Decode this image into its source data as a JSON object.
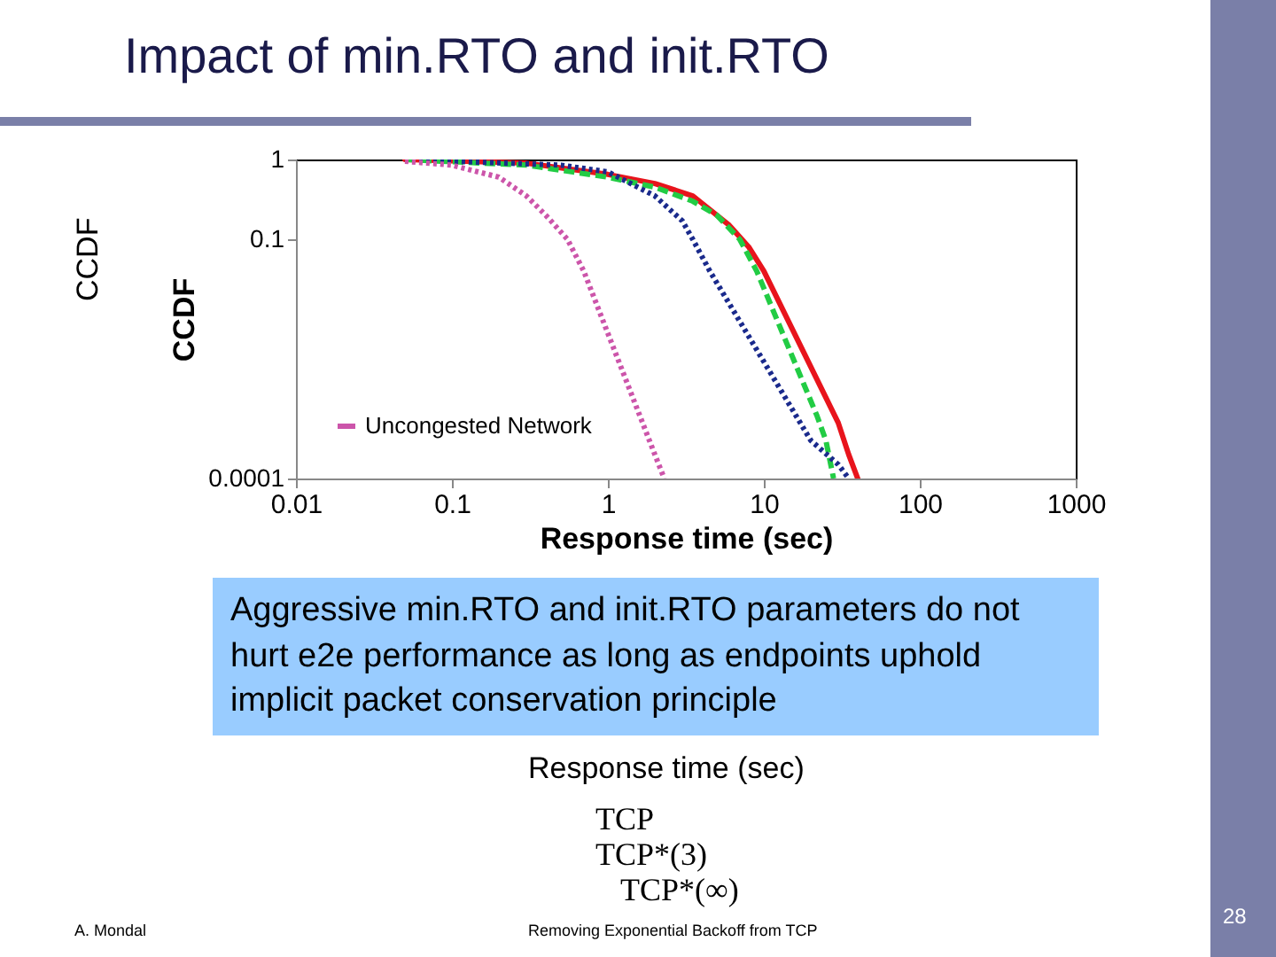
{
  "chart_data": {
    "type": "line",
    "title": "Impact of min.RTO and init.RTO",
    "xlabel": "Response time (sec)",
    "ylabel": "CCDF",
    "log": "xy",
    "xlim": [
      0.01,
      1000
    ],
    "ylim": [
      0.0001,
      1
    ],
    "xticks": [
      0.01,
      0.1,
      1,
      10,
      100,
      1000
    ],
    "yticks": [
      0.0001,
      0.1,
      1
    ],
    "legend": "bottom left",
    "series": [
      {
        "color": "#e8141c",
        "line_style": "solid",
        "x": [
          0.05,
          0.3,
          1,
          2,
          3.5,
          6,
          8,
          10,
          30,
          35,
          40
        ],
        "values": [
          1,
          0.9,
          0.65,
          0.5,
          0.35,
          0.15,
          0.08,
          0.04,
          0.0005,
          0.0002,
          0.0001
        ]
      },
      {
        "color": "#22cc44",
        "line_style": "dashed",
        "x": [
          0.05,
          0.3,
          1,
          2,
          3.5,
          5,
          7,
          9,
          22,
          25,
          28
        ],
        "values": [
          1,
          0.85,
          0.6,
          0.45,
          0.3,
          0.2,
          0.1,
          0.04,
          0.0006,
          0.0003,
          0.0001
        ]
      },
      {
        "color": "#1a2a8c",
        "line_style": "dotted",
        "x": [
          0.05,
          0.5,
          1,
          2,
          3,
          3.5,
          4.5,
          20,
          30,
          35
        ],
        "values": [
          1,
          0.85,
          0.7,
          0.35,
          0.17,
          0.1,
          0.04,
          0.0003,
          0.00015,
          0.0001
        ]
      },
      {
        "name": "Uncongested Network",
        "color": "#cc55aa",
        "line_style": "dotted",
        "x": [
          0.05,
          0.1,
          0.2,
          0.3,
          0.4,
          0.55,
          0.7,
          2,
          2.3
        ],
        "values": [
          0.95,
          0.85,
          0.6,
          0.35,
          0.2,
          0.1,
          0.04,
          0.0002,
          0.0001
        ]
      }
    ],
    "annotations": [
      "Aggressive min.RTO and init.RTO parameters do not hurt e2e performance as long as endpoints uphold implicit packet conservation principle",
      "Response time (sec)",
      "CCDF",
      "TCP",
      "TCP*(3)",
      "TCP*(∞)",
      "A. Mondal",
      "Removing Exponential Backoff from TCP",
      "28"
    ]
  }
}
